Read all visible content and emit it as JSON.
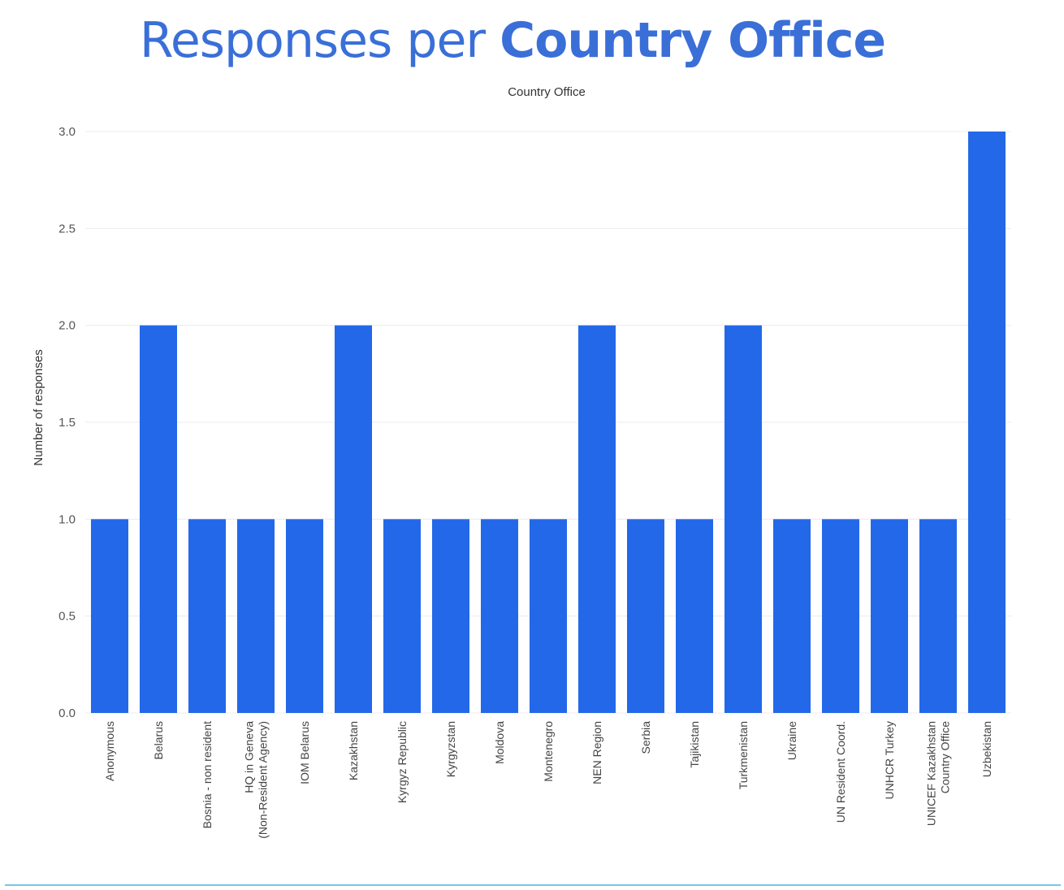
{
  "slide": {
    "title_regular": "Responses per ",
    "title_bold": "Country Office"
  },
  "colors": {
    "bar": "#2368e8",
    "title": "#3a6fd8",
    "rule": "#74c7ec"
  },
  "chart_data": {
    "type": "bar",
    "title": "Country Office",
    "xlabel": "",
    "ylabel": "Number of responses",
    "ylim": [
      0,
      3
    ],
    "yticks": [
      "0.0",
      "0.5",
      "1.0",
      "1.5",
      "2.0",
      "2.5",
      "3.0"
    ],
    "grid": true,
    "categories": [
      [
        "Anonymous"
      ],
      [
        "Belarus"
      ],
      [
        "Bosnia - non resident"
      ],
      [
        "HQ in Geneva",
        "(Non-Resident Agency)"
      ],
      [
        "IOM Belarus"
      ],
      [
        "Kazakhstan"
      ],
      [
        "Kyrgyz Republic"
      ],
      [
        "Kyrgyzstan"
      ],
      [
        "Moldova"
      ],
      [
        "Montenegro"
      ],
      [
        "NEN Region"
      ],
      [
        "Serbia"
      ],
      [
        "Tajikistan"
      ],
      [
        "Turkmenistan"
      ],
      [
        "Ukraine"
      ],
      [
        "UN Resident Coord."
      ],
      [
        "UNHCR Turkey"
      ],
      [
        "UNICEF Kazakhstan",
        "Country Office"
      ],
      [
        "Uzbekistan"
      ]
    ],
    "values": [
      1,
      2,
      1,
      1,
      1,
      2,
      1,
      1,
      1,
      1,
      2,
      1,
      1,
      2,
      1,
      1,
      1,
      1,
      3
    ]
  }
}
